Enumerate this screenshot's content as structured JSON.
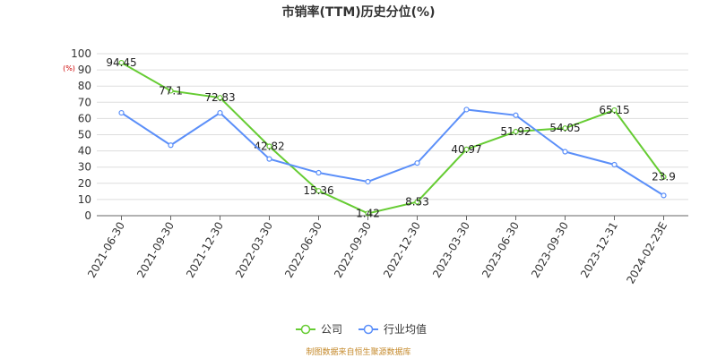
{
  "chart_data": {
    "type": "line",
    "title": "市销率(TTM)历史分位(%)",
    "ylabel": "(%)",
    "ylim": [
      0,
      100
    ],
    "yticks": [
      0,
      10,
      20,
      30,
      40,
      50,
      60,
      70,
      80,
      90,
      100
    ],
    "grid": true,
    "legend_position": "bottom",
    "categories": [
      "2021-06-30",
      "2021-09-30",
      "2021-12-30",
      "2022-03-30",
      "2022-06-30",
      "2022-09-30",
      "2022-12-30",
      "2023-03-30",
      "2023-06-30",
      "2023-09-30",
      "2023-12-31",
      "2024-02-23E"
    ],
    "series": [
      {
        "name": "公司",
        "color": "#66cc33",
        "show_labels": true,
        "labels": [
          "94.45",
          "77.1",
          "72.83",
          "42.82",
          "15.36",
          "1.42",
          "8.53",
          "40.97",
          "51.92",
          "54.05",
          "65.15",
          "23.9"
        ],
        "values": [
          94.45,
          77.1,
          72.83,
          42.82,
          15.36,
          1.42,
          8.53,
          40.97,
          51.92,
          54.05,
          65.15,
          23.9
        ]
      },
      {
        "name": "行业均值",
        "color": "#5b8ff9",
        "show_labels": false,
        "values": [
          63.5,
          43.5,
          63.5,
          35,
          26.5,
          21,
          32.5,
          65.5,
          62,
          39.5,
          31.5,
          12.5
        ]
      }
    ],
    "source": "制图数据来自恒生聚源数据库"
  }
}
